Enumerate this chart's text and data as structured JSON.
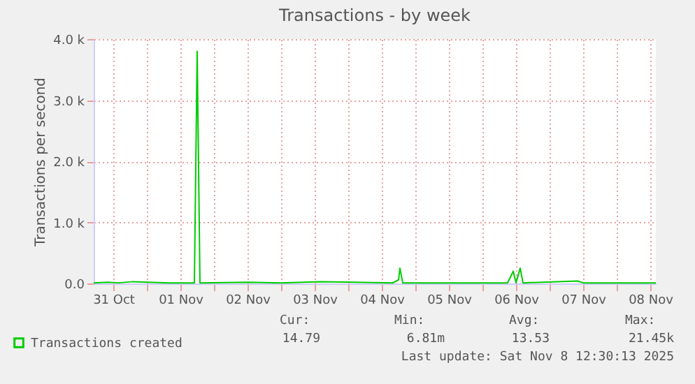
{
  "chart_data": {
    "type": "line",
    "title": "Transactions - by week",
    "ylabel": "Transactions per second",
    "x": [
      "2025-10-31T05:00",
      "2025-10-31T10:00",
      "2025-10-31T14:00",
      "2025-10-31T19:00",
      "2025-11-01T08:00",
      "2025-11-01T17:00",
      "2025-11-01T18:00",
      "2025-11-01T19:00",
      "2025-11-02T12:00",
      "2025-11-03T00:00",
      "2025-11-03T14:00",
      "2025-11-04T16:00",
      "2025-11-04T18:00",
      "2025-11-04T18:30",
      "2025-11-04T19:30",
      "2025-11-05T08:00",
      "2025-11-06T09:00",
      "2025-11-06T11:00",
      "2025-11-06T12:00",
      "2025-11-06T13:30",
      "2025-11-06T14:30",
      "2025-11-07T10:00",
      "2025-11-07T12:00",
      "2025-11-08T14:00"
    ],
    "series": [
      {
        "name": "Transactions created",
        "color": "#00cc00",
        "values": [
          10,
          20,
          10,
          30,
          10,
          10,
          3800,
          10,
          20,
          10,
          30,
          10,
          60,
          250,
          10,
          10,
          10,
          200,
          10,
          250,
          10,
          40,
          10,
          10
        ]
      }
    ],
    "xlim": [
      "2025-10-31T05:00",
      "2025-11-08T14:00"
    ],
    "xticks": [
      {
        "value": "2025-10-31T12:00",
        "label": "31 Oct"
      },
      {
        "value": "2025-11-01T00:00",
        "label": null
      },
      {
        "value": "2025-11-01T12:00",
        "label": "01 Nov"
      },
      {
        "value": "2025-11-02T00:00",
        "label": null
      },
      {
        "value": "2025-11-02T12:00",
        "label": "02 Nov"
      },
      {
        "value": "2025-11-03T00:00",
        "label": null
      },
      {
        "value": "2025-11-03T12:00",
        "label": "03 Nov"
      },
      {
        "value": "2025-11-04T00:00",
        "label": null
      },
      {
        "value": "2025-11-04T12:00",
        "label": "04 Nov"
      },
      {
        "value": "2025-11-05T00:00",
        "label": null
      },
      {
        "value": "2025-11-05T12:00",
        "label": "05 Nov"
      },
      {
        "value": "2025-11-06T00:00",
        "label": null
      },
      {
        "value": "2025-11-06T12:00",
        "label": "06 Nov"
      },
      {
        "value": "2025-11-07T00:00",
        "label": null
      },
      {
        "value": "2025-11-07T12:00",
        "label": "07 Nov"
      },
      {
        "value": "2025-11-08T00:00",
        "label": null
      },
      {
        "value": "2025-11-08T12:00",
        "label": "08 Nov"
      }
    ],
    "ylim": [
      0,
      4000
    ],
    "yticks": [
      {
        "value": 0,
        "label": "0.0"
      },
      {
        "value": 1000,
        "label": "1.0 k"
      },
      {
        "value": 2000,
        "label": "2.0 k"
      },
      {
        "value": 3000,
        "label": "3.0 k"
      },
      {
        "value": 4000,
        "label": "4.0 k"
      }
    ],
    "grid": true,
    "legend": "bottom left",
    "marker": "none",
    "line_style": "solid",
    "annotations": [
      "Cur:",
      "Min:",
      "Avg:",
      "Max:",
      "14.79",
      "6.81m",
      "13.53",
      "21.45k",
      "Last update: Sat Nov  8 12:30:13 2025"
    ]
  }
}
